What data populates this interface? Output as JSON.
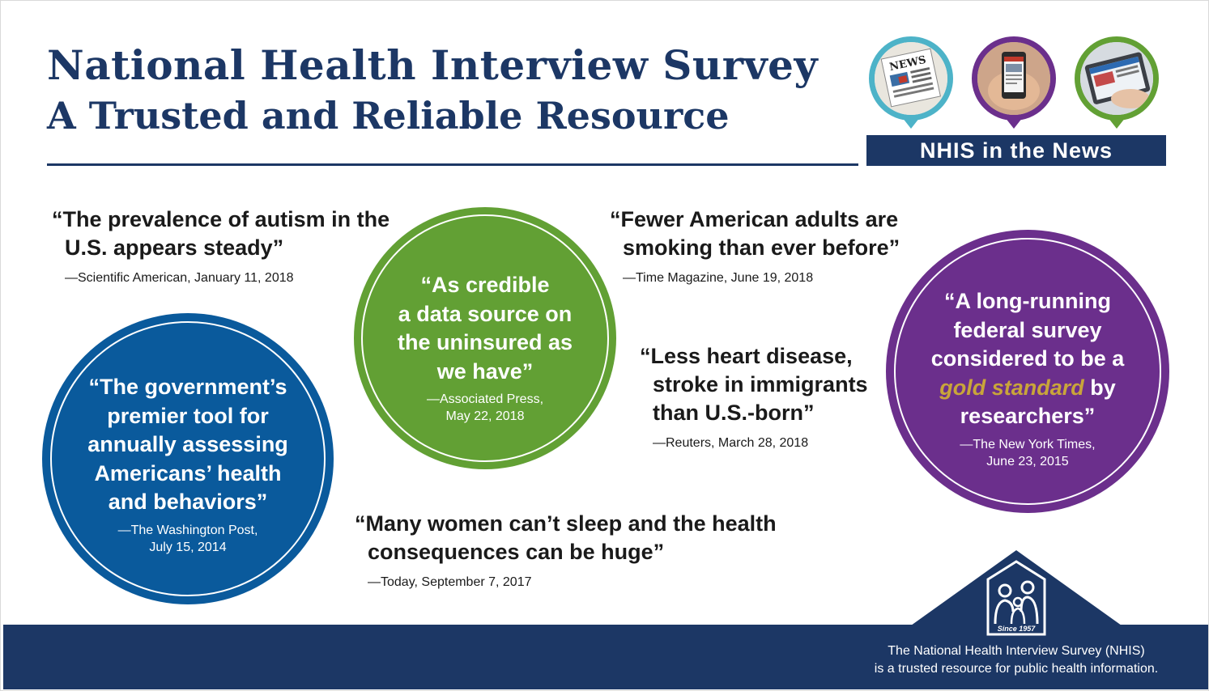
{
  "header": {
    "title": "National Health Interview Survey",
    "subtitle": "A Trusted and Reliable Resource"
  },
  "news_section": {
    "icons": [
      "newspaper-icon",
      "smartphone-news-icon",
      "tablet-news-icon"
    ],
    "newspaper_masthead": "NEWS",
    "banner": "NHIS in the News"
  },
  "quotes": {
    "autism": {
      "text_line1": "“The prevalence of autism in the",
      "text_line2": "U.S. appears steady”",
      "source": "—Scientific American, January 11, 2018"
    },
    "smoking": {
      "text_line1": "“Fewer American adults are",
      "text_line2": "smoking than ever before”",
      "source": "—Time Magazine, June 19, 2018"
    },
    "heart": {
      "text_line1": "“Less heart disease,",
      "text_line2": "stroke in immigrants",
      "text_line3": "than U.S.-born”",
      "source": "—Reuters, March 28, 2018"
    },
    "sleep": {
      "text_line1": "“Many women can’t sleep and the health",
      "text_line2": "consequences can be huge”",
      "source": "—Today, September 7, 2017"
    }
  },
  "circles": {
    "blue": {
      "lines": [
        "“The government’s",
        "premier tool for",
        "annually assessing",
        "Americans’ health",
        "and behaviors”"
      ],
      "source_line1": "—The Washington Post,",
      "source_line2": "July 15, 2014",
      "color": "#0a5a9c"
    },
    "green": {
      "lines": [
        "“As credible",
        "a data source on",
        "the uninsured as",
        "we have”"
      ],
      "source_line1": "—Associated Press,",
      "source_line2": "May 22, 2018",
      "color": "#62a034"
    },
    "purple": {
      "line1": "“A long-running",
      "line2": "federal survey",
      "line3": "considered to be a",
      "line4_highlight": "gold standard",
      "line4_rest": " by",
      "line5": "researchers”",
      "source_line1": "—The New York Times,",
      "source_line2": "June 23, 2015",
      "color": "#6b2f8c"
    }
  },
  "logo": {
    "caption": "Since 1957"
  },
  "footer": {
    "line1": "The National Health Interview Survey (NHIS)",
    "line2": "is a trusted resource for public health information."
  },
  "colors": {
    "navy": "#1c3765",
    "gold": "#c9a53a",
    "teal": "#4db3c8",
    "purple": "#6b2f8c",
    "green": "#62a034"
  }
}
